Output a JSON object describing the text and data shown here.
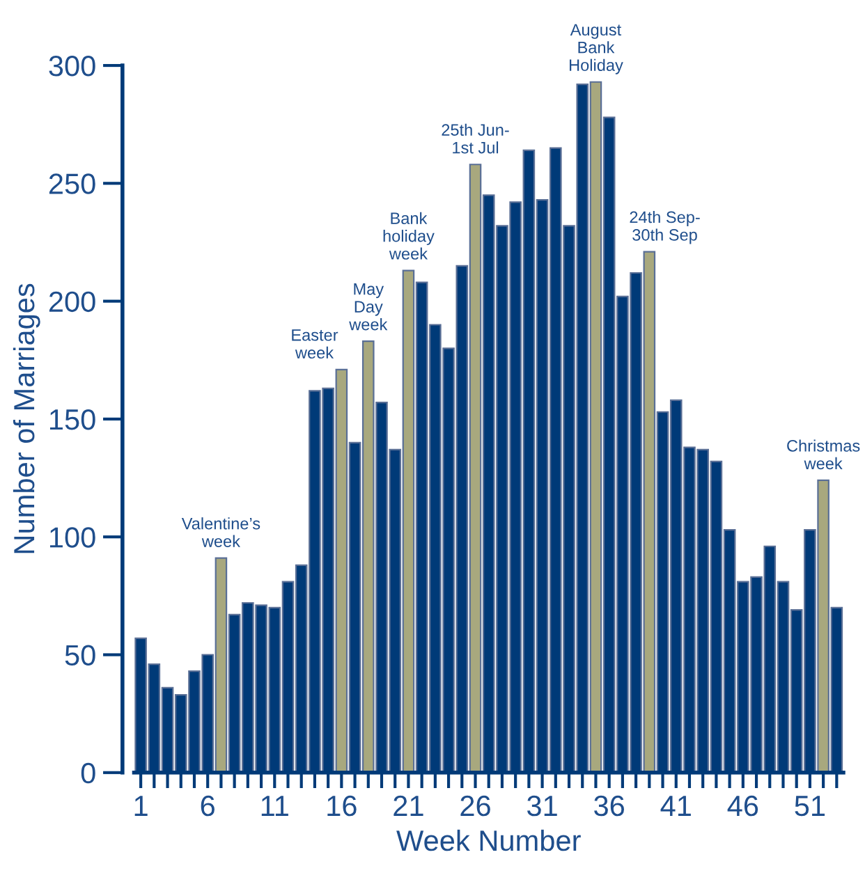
{
  "chart_data": {
    "type": "bar",
    "xlabel": "Week Number",
    "ylabel": "Number of Marriages",
    "x": [
      1,
      2,
      3,
      4,
      5,
      6,
      7,
      8,
      9,
      10,
      11,
      12,
      13,
      14,
      15,
      16,
      17,
      18,
      19,
      20,
      21,
      22,
      23,
      24,
      25,
      26,
      27,
      28,
      29,
      30,
      31,
      32,
      33,
      34,
      35,
      36,
      37,
      38,
      39,
      40,
      41,
      42,
      43,
      44,
      45,
      46,
      47,
      48,
      49,
      50,
      51,
      52,
      53
    ],
    "values": [
      57,
      46,
      36,
      33,
      43,
      50,
      91,
      67,
      72,
      71,
      70,
      81,
      88,
      162,
      163,
      171,
      140,
      183,
      157,
      137,
      213,
      208,
      190,
      180,
      215,
      258,
      245,
      232,
      242,
      264,
      243,
      265,
      232,
      292,
      293,
      278,
      202,
      212,
      221,
      153,
      158,
      138,
      137,
      132,
      103,
      81,
      83,
      96,
      81,
      69,
      103,
      124,
      70
    ],
    "colors": [
      "#003a78",
      "#003a78",
      "#003a78",
      "#003a78",
      "#003a78",
      "#003a78",
      "#a8a87e",
      "#003a78",
      "#003a78",
      "#003a78",
      "#003a78",
      "#003a78",
      "#003a78",
      "#003a78",
      "#003a78",
      "#a8a87e",
      "#003a78",
      "#a8a87e",
      "#003a78",
      "#003a78",
      "#a8a87e",
      "#003a78",
      "#003a78",
      "#003a78",
      "#003a78",
      "#a8a87e",
      "#003a78",
      "#003a78",
      "#003a78",
      "#003a78",
      "#003a78",
      "#003a78",
      "#003a78",
      "#003a78",
      "#a8a87e",
      "#003a78",
      "#003a78",
      "#003a78",
      "#a8a87e",
      "#003a78",
      "#003a78",
      "#003a78",
      "#003a78",
      "#003a78",
      "#003a78",
      "#003a78",
      "#003a78",
      "#003a78",
      "#003a78",
      "#003a78",
      "#003a78",
      "#a8a87e",
      "#003a78"
    ],
    "xlim": [
      0.5,
      53.5
    ],
    "xticks": [
      1,
      {
        "value": 2,
        "label": null
      },
      {
        "value": 3,
        "label": null
      },
      {
        "value": 4,
        "label": null
      },
      {
        "value": 5,
        "label": null
      },
      6,
      {
        "value": 7,
        "label": null
      },
      {
        "value": 8,
        "label": null
      },
      {
        "value": 9,
        "label": null
      },
      {
        "value": 10,
        "label": null
      },
      11,
      {
        "value": 12,
        "label": null
      },
      {
        "value": 13,
        "label": null
      },
      {
        "value": 14,
        "label": null
      },
      {
        "value": 15,
        "label": null
      },
      16,
      {
        "value": 17,
        "label": null
      },
      {
        "value": 18,
        "label": null
      },
      {
        "value": 19,
        "label": null
      },
      {
        "value": 20,
        "label": null
      },
      21,
      {
        "value": 22,
        "label": null
      },
      {
        "value": 23,
        "label": null
      },
      {
        "value": 24,
        "label": null
      },
      {
        "value": 25,
        "label": null
      },
      26,
      {
        "value": 27,
        "label": null
      },
      {
        "value": 28,
        "label": null
      },
      {
        "value": 29,
        "label": null
      },
      {
        "value": 30,
        "label": null
      },
      31,
      {
        "value": 32,
        "label": null
      },
      {
        "value": 33,
        "label": null
      },
      {
        "value": 34,
        "label": null
      },
      {
        "value": 35,
        "label": null
      },
      36,
      {
        "value": 37,
        "label": null
      },
      {
        "value": 38,
        "label": null
      },
      {
        "value": 39,
        "label": null
      },
      {
        "value": 40,
        "label": null
      },
      41,
      {
        "value": 42,
        "label": null
      },
      {
        "value": 43,
        "label": null
      },
      {
        "value": 44,
        "label": null
      },
      {
        "value": 45,
        "label": null
      },
      46,
      {
        "value": 47,
        "label": null
      },
      {
        "value": 48,
        "label": null
      },
      {
        "value": 49,
        "label": null
      },
      {
        "value": 50,
        "label": null
      },
      51,
      {
        "value": 52,
        "label": null
      },
      {
        "value": 53,
        "label": null
      }
    ],
    "ylim": [
      0,
      300
    ],
    "yticks": [
      0,
      50,
      100,
      150,
      200,
      250,
      300
    ],
    "grid": false,
    "annotations": [
      {
        "text": "Valentine’s\nweek",
        "x": 7,
        "y": 91
      },
      {
        "text": "Easter\nweek",
        "x": 16,
        "y": 171
      },
      {
        "text": "May\nDay\nweek",
        "x": 18,
        "y": 183
      },
      {
        "text": "Bank\nholiday\nweek",
        "x": 21,
        "y": 213
      },
      {
        "text": "25th Jun-\n1st Jul",
        "x": 26,
        "y": 258
      },
      {
        "text": "August\nBank\nHoliday",
        "x": 35,
        "y": 293
      },
      {
        "text": "24th Sep-\n30th Sep",
        "x": 39,
        "y": 221
      },
      {
        "text": "Christmas\nweek",
        "x": 52,
        "y": 124
      }
    ]
  }
}
